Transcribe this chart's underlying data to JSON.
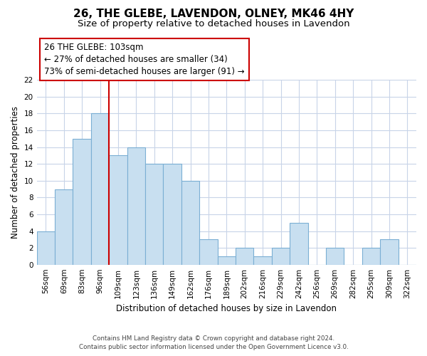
{
  "title": "26, THE GLEBE, LAVENDON, OLNEY, MK46 4HY",
  "subtitle": "Size of property relative to detached houses in Lavendon",
  "xlabel": "Distribution of detached houses by size in Lavendon",
  "ylabel": "Number of detached properties",
  "bar_color": "#c8dff0",
  "bar_edge_color": "#7bafd4",
  "categories": [
    "56sqm",
    "69sqm",
    "83sqm",
    "96sqm",
    "109sqm",
    "123sqm",
    "136sqm",
    "149sqm",
    "162sqm",
    "176sqm",
    "189sqm",
    "202sqm",
    "216sqm",
    "229sqm",
    "242sqm",
    "256sqm",
    "269sqm",
    "282sqm",
    "295sqm",
    "309sqm",
    "322sqm"
  ],
  "values": [
    4,
    9,
    15,
    18,
    13,
    14,
    12,
    12,
    10,
    3,
    1,
    2,
    1,
    2,
    5,
    0,
    2,
    0,
    2,
    3,
    0
  ],
  "ylim": [
    0,
    22
  ],
  "yticks": [
    0,
    2,
    4,
    6,
    8,
    10,
    12,
    14,
    16,
    18,
    20,
    22
  ],
  "vline_x": 3.5,
  "vline_color": "#cc0000",
  "annotation_text": "26 THE GLEBE: 103sqm\n← 27% of detached houses are smaller (34)\n73% of semi-detached houses are larger (91) →",
  "footer_line1": "Contains HM Land Registry data © Crown copyright and database right 2024.",
  "footer_line2": "Contains public sector information licensed under the Open Government Licence v3.0.",
  "bg_color": "#ffffff",
  "grid_color": "#c8d4e8",
  "title_fontsize": 11,
  "subtitle_fontsize": 9.5,
  "tick_fontsize": 7.5,
  "ylabel_fontsize": 8.5,
  "xlabel_fontsize": 8.5,
  "annotation_fontsize": 8.5
}
